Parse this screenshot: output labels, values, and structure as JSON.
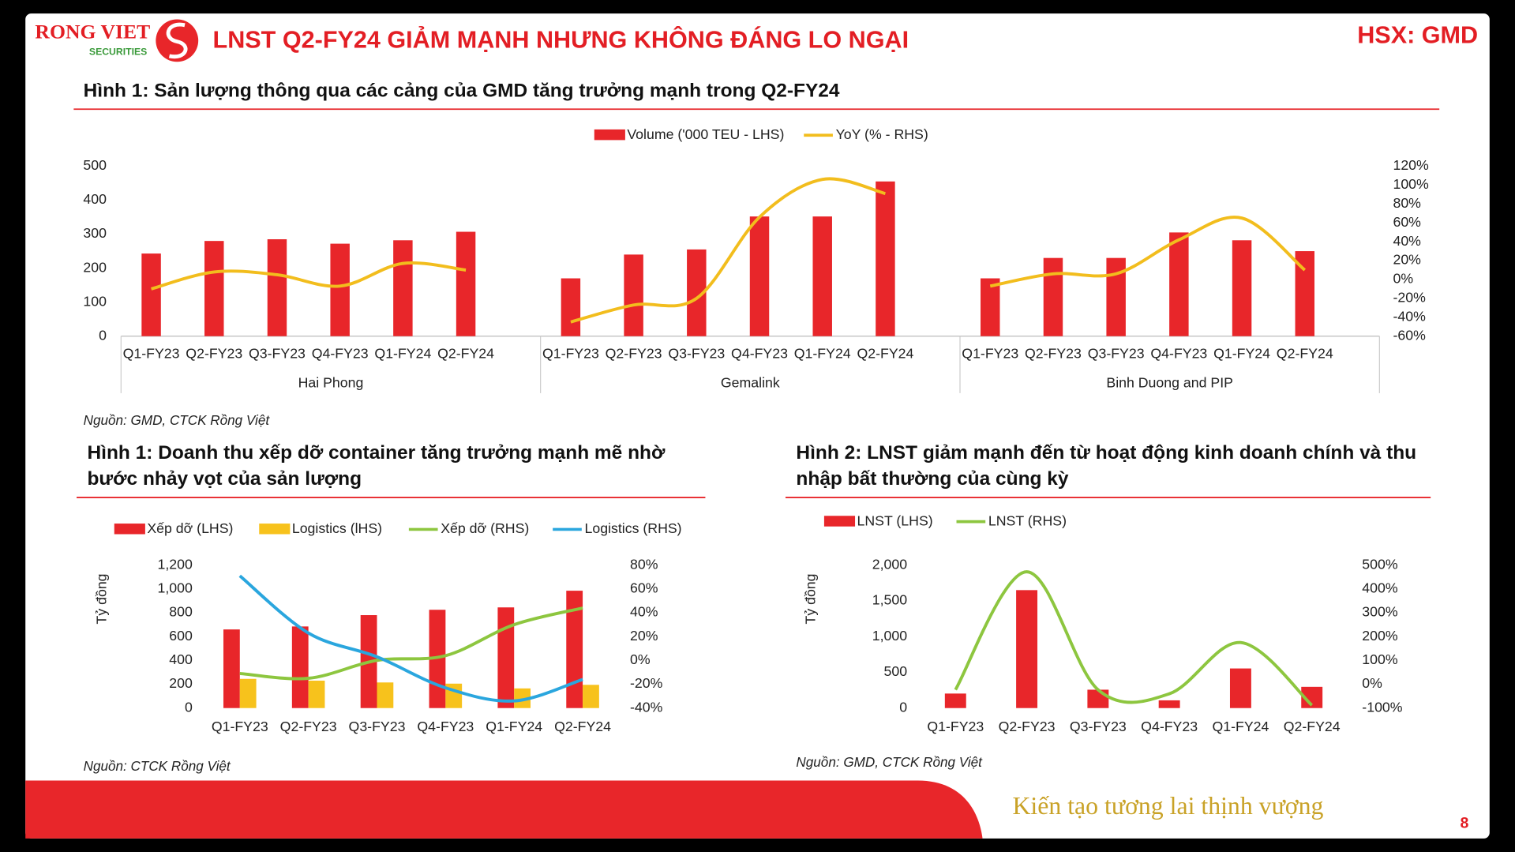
{
  "header": {
    "logo": "RONG VIET",
    "logo_sub": "SECURITIES",
    "title": "LNST Q2-FY24 GIẢM MẠNH NHƯNG KHÔNG ĐÁNG LO NGẠI",
    "ticker": "HSX: GMD"
  },
  "chart_data": [
    {
      "type": "bar",
      "title": "Hình 1: Sản lượng thông qua các cảng của GMD tăng trưởng mạnh trong Q2-FY24",
      "categories": [
        "Q1-FY23",
        "Q2-FY23",
        "Q3-FY23",
        "Q4-FY23",
        "Q1-FY24",
        "Q2-FY24",
        "Q1-FY23",
        "Q2-FY23",
        "Q3-FY23",
        "Q4-FY23",
        "Q1-FY24",
        "Q2-FY24",
        "Q1-FY23",
        "Q2-FY23",
        "Q3-FY23",
        "Q4-FY23",
        "Q1-FY24",
        "Q2-FY24"
      ],
      "groups": [
        "Hai Phong",
        "Gemalink",
        "Binh Duong and PIP"
      ],
      "series": [
        {
          "name": "Volume ('000 TEU - LHS)",
          "type": "bar",
          "color": "#e8262a",
          "values": [
            243,
            280,
            285,
            272,
            282,
            307,
            170,
            240,
            255,
            352,
            352,
            455,
            170,
            230,
            230,
            305,
            282,
            250
          ]
        },
        {
          "name": "YoY (% - RHS)",
          "type": "line",
          "axis": "y2",
          "color": "#f2bd1d",
          "values": [
            -10,
            8,
            5,
            -7,
            17,
            10,
            -45,
            -27,
            -20,
            66,
            106,
            91,
            -7,
            6,
            6,
            42,
            65,
            10
          ]
        }
      ],
      "ylim": [
        0,
        500
      ],
      "yticks": [
        0,
        100,
        200,
        300,
        400,
        500
      ],
      "y2lim": [
        -60,
        120
      ],
      "y2ticks": [
        {
          "value": -60,
          "label": "-60%"
        },
        {
          "value": -40,
          "label": "-40%"
        },
        {
          "value": -20,
          "label": "-20%"
        },
        {
          "value": 0,
          "label": "0%"
        },
        {
          "value": 20,
          "label": "20%"
        },
        {
          "value": 40,
          "label": "40%"
        },
        {
          "value": 60,
          "label": "60%"
        },
        {
          "value": 80,
          "label": "80%"
        },
        {
          "value": 100,
          "label": "100%"
        },
        {
          "value": 120,
          "label": "120%"
        }
      ],
      "source": "Nguồn: GMD, CTCK Rồng Việt"
    },
    {
      "type": "bar",
      "title": "Hình 1: Doanh thu xếp dỡ container tăng trưởng mạnh mẽ nhờ bước nhảy vọt của sản lượng",
      "ylabel": "Tỷ đồng",
      "categories": [
        "Q1-FY23",
        "Q2-FY23",
        "Q3-FY23",
        "Q4-FY23",
        "Q1-FY24",
        "Q2-FY24"
      ],
      "series": [
        {
          "name": "Xếp dỡ (LHS)",
          "type": "bar",
          "color": "#e8262a",
          "values": [
            660,
            685,
            780,
            825,
            845,
            985
          ]
        },
        {
          "name": "Logistics (lHS)",
          "type": "bar",
          "color": "#f7c21c",
          "values": [
            245,
            230,
            215,
            205,
            165,
            195
          ]
        },
        {
          "name": "Xếp dỡ (RHS)",
          "type": "line",
          "axis": "y2",
          "color": "#8dc63f",
          "values": [
            -11,
            -15,
            0,
            4,
            30,
            44
          ]
        },
        {
          "name": "Logistics (RHS)",
          "type": "line",
          "axis": "y2",
          "color": "#2aa6de",
          "values": [
            71,
            23,
            3,
            -23,
            -34,
            -16
          ]
        }
      ],
      "ylim": [
        0,
        1200
      ],
      "yticks": [
        0,
        200,
        400,
        600,
        800,
        {
          "value": 1000,
          "label": "1,000"
        },
        {
          "value": 1200,
          "label": "1,200"
        }
      ],
      "y2lim": [
        -40,
        80
      ],
      "y2ticks": [
        {
          "value": -40,
          "label": "-40%"
        },
        {
          "value": -20,
          "label": "-20%"
        },
        {
          "value": 0,
          "label": "0%"
        },
        {
          "value": 20,
          "label": "20%"
        },
        {
          "value": 40,
          "label": "40%"
        },
        {
          "value": 60,
          "label": "60%"
        },
        {
          "value": 80,
          "label": "80%"
        }
      ],
      "source": "Nguồn: CTCK Rồng Việt"
    },
    {
      "type": "bar",
      "title": "Hình 2: LNST giảm mạnh đến từ hoạt động kinh doanh chính và thu nhập bất thường của cùng kỳ",
      "ylabel": "Tỷ đồng",
      "categories": [
        "Q1-FY23",
        "Q2-FY23",
        "Q3-FY23",
        "Q4-FY23",
        "Q1-FY24",
        "Q2-FY24"
      ],
      "series": [
        {
          "name": "LNST (LHS)",
          "type": "bar",
          "color": "#e8262a",
          "values": [
            203,
            1650,
            257,
            108,
            554,
            297
          ]
        },
        {
          "name": "LNST (RHS)",
          "type": "line",
          "axis": "y2",
          "color": "#8dc63f",
          "values": [
            -23,
            472,
            -23,
            -40,
            175,
            -88
          ]
        }
      ],
      "ylim": [
        0,
        2000
      ],
      "yticks": [
        0,
        500,
        {
          "value": 1000,
          "label": "1,000"
        },
        {
          "value": 1500,
          "label": "1,500"
        },
        {
          "value": 2000,
          "label": "2,000"
        }
      ],
      "y2lim": [
        -100,
        500
      ],
      "y2ticks": [
        {
          "value": -100,
          "label": "-100%"
        },
        {
          "value": 0,
          "label": "0%"
        },
        {
          "value": 100,
          "label": "100%"
        },
        {
          "value": 200,
          "label": "200%"
        },
        {
          "value": 300,
          "label": "300%"
        },
        {
          "value": 400,
          "label": "400%"
        },
        {
          "value": 500,
          "label": "500%"
        }
      ],
      "source": "Nguồn: GMD, CTCK Rồng Việt"
    }
  ],
  "footer": {
    "slogan": "Kiến tạo tương lai thịnh vượng",
    "page": 8
  }
}
